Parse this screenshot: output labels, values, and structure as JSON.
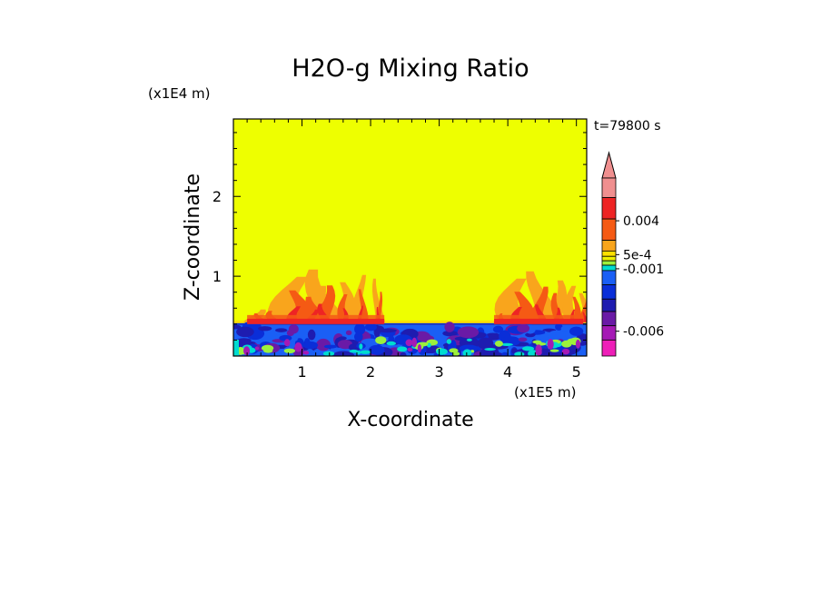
{
  "chart_data": {
    "type": "heatmap",
    "title": "H2O-g Mixing Ratio",
    "xlabel": "X-coordinate",
    "ylabel": "Z-coordinate",
    "x_scale_label": "(x1E5 m)",
    "y_scale_label": "(x1E4 m)",
    "time_label": "t=79800 s",
    "xlim": [
      0,
      5.15
    ],
    "ylim": [
      0,
      2.97
    ],
    "x_ticks": [
      "1",
      "2",
      "3",
      "4",
      "5"
    ],
    "y_ticks": [
      "1",
      "2"
    ],
    "x_tick_values": [
      1,
      2,
      3,
      4,
      5
    ],
    "y_tick_values": [
      1,
      2
    ],
    "colorbar": {
      "labels": [
        "0.004",
        "5e-4",
        "-0.001",
        "-0.006"
      ],
      "levels": [
        {
          "color": "#f08f8f"
        },
        {
          "color": "#ee2424"
        },
        {
          "color": "#f55a14"
        },
        {
          "color": "#f9a51c"
        },
        {
          "color": "#ffe000"
        },
        {
          "color": "#eef000"
        },
        {
          "color": "#9cf03c"
        },
        {
          "color": "#00dcd0"
        },
        {
          "color": "#1a5ff5"
        },
        {
          "color": "#0a2ed8"
        },
        {
          "color": "#1e1cb0"
        },
        {
          "color": "#6a1aa6"
        },
        {
          "color": "#a51ab5"
        },
        {
          "color": "#ee1fb8"
        }
      ]
    },
    "background_color": "#eeff00",
    "boundary_layer_top": 0.4,
    "plume_regions_x": [
      [
        0.2,
        2.2
      ],
      [
        3.8,
        5.1
      ]
    ]
  }
}
